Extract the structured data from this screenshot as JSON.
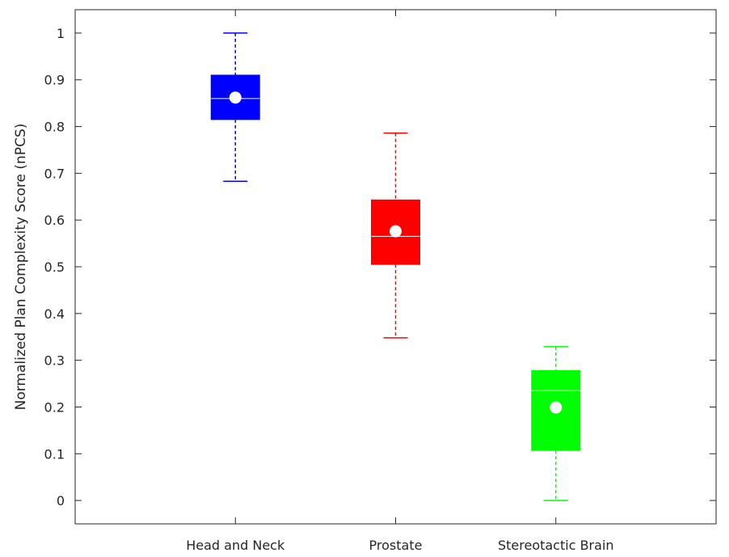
{
  "chart_data": {
    "type": "box",
    "ylabel": "Normalized Plan Complexity Score (nPCS)",
    "xlabel": "",
    "title": "",
    "ylim": [
      -0.05,
      1.05
    ],
    "yticks": [
      "0",
      "0.1",
      "0.2",
      "0.3",
      "0.4",
      "0.5",
      "0.6",
      "0.7",
      "0.8",
      "0.9",
      "1"
    ],
    "categories": [
      "Head and Neck",
      "Prostate",
      "Stereotactic Brain"
    ],
    "grid": false,
    "boxes": [
      {
        "category": "Head and Neck",
        "color": "#0000ff",
        "whisker_low": 0.683,
        "q1": 0.815,
        "median": 0.86,
        "q3": 0.91,
        "whisker_high": 1.0,
        "mean": 0.862
      },
      {
        "category": "Prostate",
        "color": "#ff0000",
        "whisker_low": 0.348,
        "q1": 0.505,
        "median": 0.565,
        "q3": 0.643,
        "whisker_high": 0.786,
        "mean": 0.576
      },
      {
        "category": "Stereotactic Brain",
        "color": "#00ff00",
        "whisker_low": 0.0,
        "q1": 0.107,
        "median": 0.235,
        "q3": 0.278,
        "whisker_high": 0.329,
        "mean": 0.199
      }
    ]
  }
}
